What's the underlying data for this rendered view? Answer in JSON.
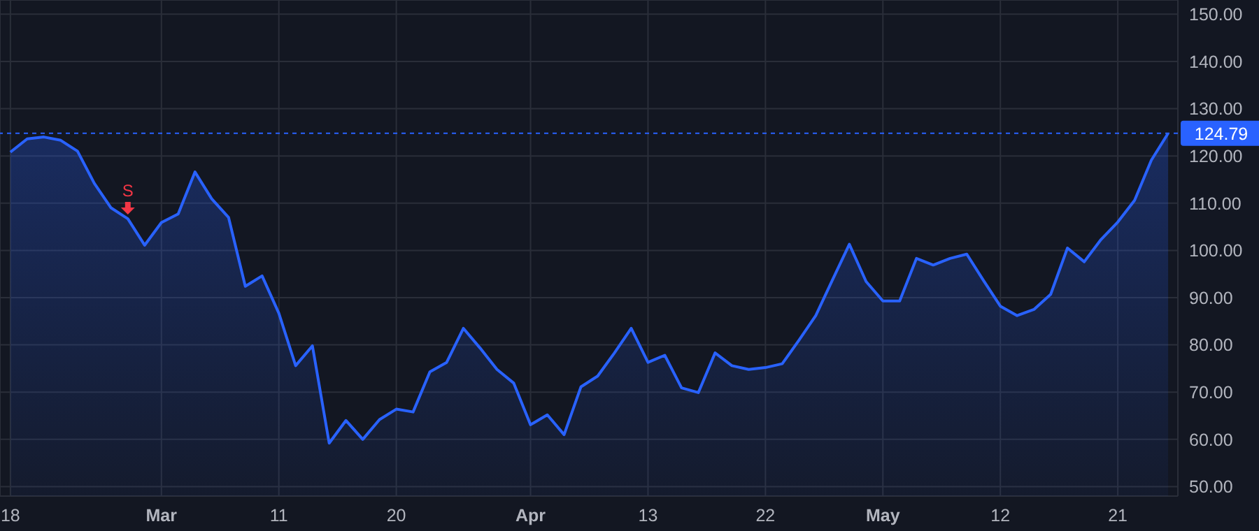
{
  "chart_data": {
    "type": "area",
    "categories": [
      "18",
      null,
      null,
      null,
      null,
      null,
      null,
      null,
      null,
      "Mar",
      null,
      null,
      null,
      null,
      null,
      null,
      "11",
      null,
      null,
      null,
      null,
      null,
      null,
      "20",
      null,
      null,
      null,
      null,
      null,
      null,
      null,
      "Apr",
      null,
      null,
      null,
      null,
      null,
      null,
      "13",
      null,
      null,
      null,
      null,
      null,
      null,
      "22",
      null,
      null,
      null,
      null,
      null,
      null,
      "May",
      null,
      null,
      null,
      null,
      null,
      null,
      "12",
      null,
      null,
      null,
      null,
      null,
      null,
      "21",
      null,
      null,
      null
    ],
    "series": [
      {
        "color": "#2962ff",
        "values": [
          120.8,
          123.6,
          124.0,
          123.3,
          121.0,
          114.2,
          109.0,
          106.7,
          101.1,
          105.9,
          107.7,
          116.6,
          110.9,
          107.0,
          92.4,
          94.6,
          86.7,
          75.6,
          79.8,
          59.2,
          64.0,
          60.0,
          64.2,
          66.4,
          65.8,
          74.3,
          76.3,
          83.5,
          79.3,
          74.8,
          71.9,
          63.1,
          65.2,
          61.0,
          71.1,
          73.4,
          78.3,
          83.5,
          76.3,
          77.8,
          70.9,
          69.9,
          78.3,
          75.6,
          74.8,
          75.2,
          76.0,
          81.0,
          86.2,
          93.8,
          101.3,
          93.4,
          89.3,
          89.3,
          98.3,
          96.9,
          98.3,
          99.2,
          93.6,
          88.2,
          86.2,
          87.5,
          90.7,
          100.5,
          97.6,
          102.3,
          106.0,
          110.6,
          119.1,
          124.8
        ]
      }
    ],
    "ylim": [
      48,
      153
    ],
    "yticks": [
      {
        "value": 50,
        "label": "50.00"
      },
      {
        "value": 60,
        "label": "60.00"
      },
      {
        "value": 70,
        "label": "70.00"
      },
      {
        "value": 80,
        "label": "80.00"
      },
      {
        "value": 90,
        "label": "90.00"
      },
      {
        "value": 100,
        "label": "100.00"
      },
      {
        "value": 110,
        "label": "110.00"
      },
      {
        "value": 120,
        "label": "120.00"
      },
      {
        "value": 130,
        "label": "130.00"
      },
      {
        "value": 140,
        "label": "140.00"
      },
      {
        "value": 150,
        "label": "150.00"
      }
    ],
    "grid": true,
    "line_style": "solid",
    "marker": "none",
    "ref_lines": [
      {
        "axis": "y",
        "value": 124.79,
        "label": "124.79",
        "color": "#2962ff",
        "line_style": "dashed"
      }
    ],
    "annotations": [
      {
        "text": "S",
        "y": 106.7
      }
    ]
  }
}
